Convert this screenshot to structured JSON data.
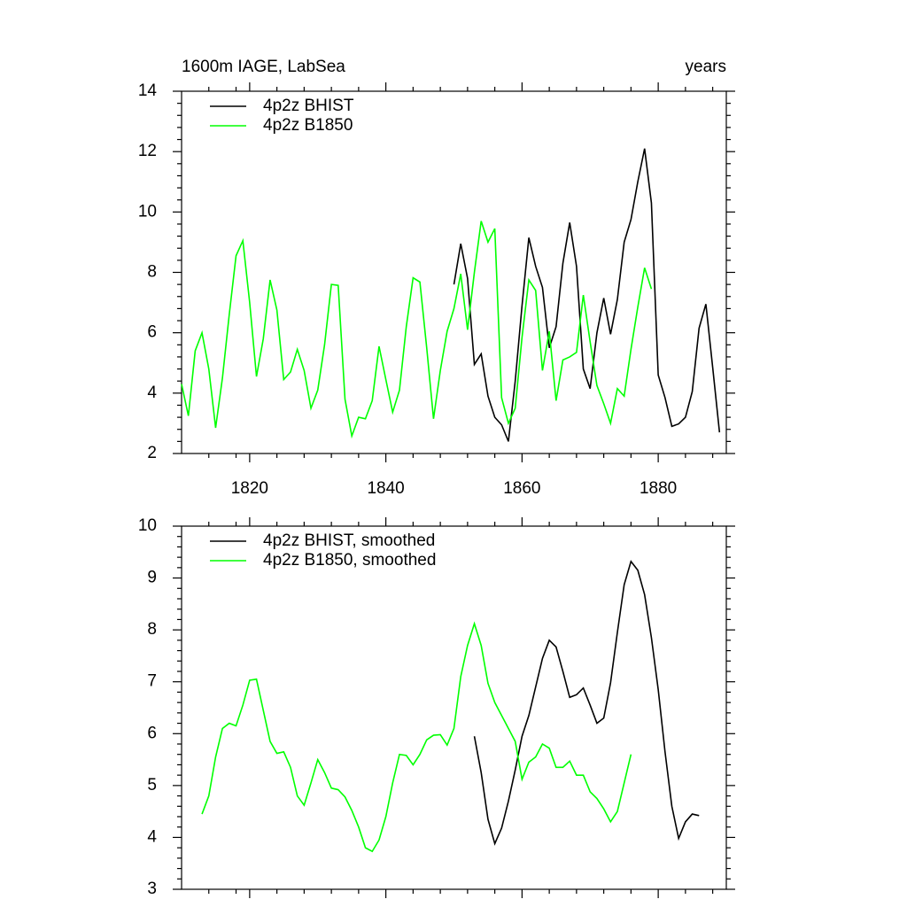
{
  "chart_data": [
    {
      "type": "line",
      "title": "1600m IAGE, LabSea",
      "units_label": "years",
      "xlim": [
        1810,
        1890
      ],
      "xticks": [
        1820,
        1840,
        1860,
        1880
      ],
      "ylim": [
        2,
        14
      ],
      "yticks": [
        2,
        4,
        6,
        8,
        10,
        12,
        14
      ],
      "series": [
        {
          "name": "4p2z BHIST",
          "color": "#000000",
          "x": [
            1850,
            1851,
            1852,
            1853,
            1854,
            1855,
            1856,
            1857,
            1858,
            1859,
            1860,
            1861,
            1862,
            1863,
            1864,
            1865,
            1866,
            1867,
            1868,
            1869,
            1870,
            1871,
            1872,
            1873,
            1874,
            1875,
            1876,
            1877,
            1878,
            1879,
            1880,
            1881,
            1882,
            1883,
            1884,
            1885,
            1886,
            1887,
            1888,
            1889
          ],
          "values": [
            7.6,
            8.95,
            7.8,
            4.95,
            5.3,
            3.9,
            3.2,
            2.95,
            2.4,
            4.4,
            6.9,
            9.15,
            8.2,
            7.5,
            5.5,
            6.2,
            8.3,
            9.65,
            8.2,
            4.8,
            4.15,
            6.0,
            7.15,
            5.95,
            7.1,
            9.0,
            9.75,
            11.0,
            12.1,
            10.3,
            4.6,
            3.85,
            2.9,
            2.98,
            3.2,
            4.05,
            6.15,
            6.95,
            4.85,
            2.7
          ]
        },
        {
          "name": "4p2z B1850",
          "color": "#00ff00",
          "x": [
            1810,
            1811,
            1812,
            1813,
            1814,
            1815,
            1816,
            1817,
            1818,
            1819,
            1820,
            1821,
            1822,
            1823,
            1824,
            1825,
            1826,
            1827,
            1828,
            1829,
            1830,
            1831,
            1832,
            1833,
            1834,
            1835,
            1836,
            1837,
            1838,
            1839,
            1840,
            1841,
            1842,
            1843,
            1844,
            1845,
            1846,
            1847,
            1848,
            1849,
            1850,
            1851,
            1852,
            1853,
            1854,
            1855,
            1856,
            1857,
            1858,
            1859,
            1860,
            1861,
            1862,
            1863,
            1864,
            1865,
            1866,
            1867,
            1868,
            1869,
            1870,
            1871,
            1872,
            1873,
            1874,
            1875,
            1876,
            1877,
            1878,
            1879
          ],
          "values": [
            4.3,
            3.25,
            5.4,
            6.0,
            4.8,
            2.85,
            4.5,
            6.6,
            8.55,
            9.05,
            7.0,
            4.55,
            5.8,
            7.75,
            6.75,
            4.45,
            4.7,
            5.45,
            4.75,
            3.5,
            4.1,
            5.6,
            7.6,
            7.57,
            3.8,
            2.58,
            3.2,
            3.15,
            3.75,
            5.55,
            4.45,
            3.37,
            4.1,
            6.2,
            7.82,
            7.68,
            5.5,
            3.15,
            4.75,
            6.05,
            6.8,
            7.95,
            6.1,
            8.0,
            9.7,
            9.0,
            9.45,
            3.85,
            3.0,
            3.5,
            5.85,
            7.75,
            7.4,
            4.75,
            6.05,
            3.75,
            5.1,
            5.2,
            5.35,
            7.25,
            5.7,
            4.25,
            3.65,
            3.0,
            4.15,
            3.9,
            5.45,
            6.85,
            8.15,
            7.45
          ]
        }
      ]
    },
    {
      "type": "line",
      "xlim": [
        1810,
        1890
      ],
      "xticks": [
        1820,
        1840,
        1860,
        1880
      ],
      "ylim": [
        3,
        10
      ],
      "yticks": [
        3,
        4,
        5,
        6,
        7,
        8,
        9,
        10
      ],
      "series": [
        {
          "name": "4p2z BHIST, smoothed",
          "color": "#000000",
          "x": [
            1853,
            1854,
            1855,
            1856,
            1857,
            1858,
            1859,
            1860,
            1861,
            1862,
            1863,
            1864,
            1865,
            1866,
            1867,
            1868,
            1869,
            1870,
            1871,
            1872,
            1873,
            1874,
            1875,
            1876,
            1877,
            1878,
            1879,
            1880,
            1881,
            1882,
            1883,
            1884,
            1885,
            1886
          ],
          "values": [
            5.95,
            5.25,
            4.35,
            3.88,
            4.18,
            4.7,
            5.3,
            5.95,
            6.35,
            6.9,
            7.45,
            7.8,
            7.67,
            7.2,
            6.7,
            6.75,
            6.88,
            6.55,
            6.2,
            6.3,
            6.98,
            7.95,
            8.87,
            9.32,
            9.15,
            8.68,
            7.85,
            6.85,
            5.65,
            4.6,
            3.98,
            4.3,
            4.45,
            4.42
          ]
        },
        {
          "name": "4p2z B1850, smoothed",
          "color": "#00ff00",
          "x": [
            1813,
            1814,
            1815,
            1816,
            1817,
            1818,
            1819,
            1820,
            1821,
            1822,
            1823,
            1824,
            1825,
            1826,
            1827,
            1828,
            1829,
            1830,
            1831,
            1832,
            1833,
            1834,
            1835,
            1836,
            1837,
            1838,
            1839,
            1840,
            1841,
            1842,
            1843,
            1844,
            1845,
            1846,
            1847,
            1848,
            1849,
            1850,
            1851,
            1852,
            1853,
            1854,
            1855,
            1856,
            1857,
            1858,
            1859,
            1860,
            1861,
            1862,
            1863,
            1864,
            1865,
            1866,
            1867,
            1868,
            1869,
            1870,
            1871,
            1872,
            1873,
            1874,
            1875,
            1876
          ],
          "values": [
            4.45,
            4.8,
            5.55,
            6.1,
            6.2,
            6.15,
            6.55,
            7.03,
            7.05,
            6.45,
            5.85,
            5.62,
            5.65,
            5.35,
            4.8,
            4.62,
            5.05,
            5.5,
            5.25,
            4.95,
            4.92,
            4.78,
            4.52,
            4.2,
            3.8,
            3.73,
            3.95,
            4.4,
            5.05,
            5.6,
            5.58,
            5.4,
            5.6,
            5.88,
            5.97,
            5.98,
            5.78,
            6.1,
            7.1,
            7.7,
            8.12,
            7.7,
            6.97,
            6.6,
            6.35,
            6.1,
            5.85,
            5.12,
            5.45,
            5.55,
            5.8,
            5.72,
            5.35,
            5.35,
            5.47,
            5.2,
            5.2,
            4.88,
            4.75,
            4.55,
            4.3,
            4.5,
            5.05,
            5.6
          ]
        }
      ]
    }
  ]
}
